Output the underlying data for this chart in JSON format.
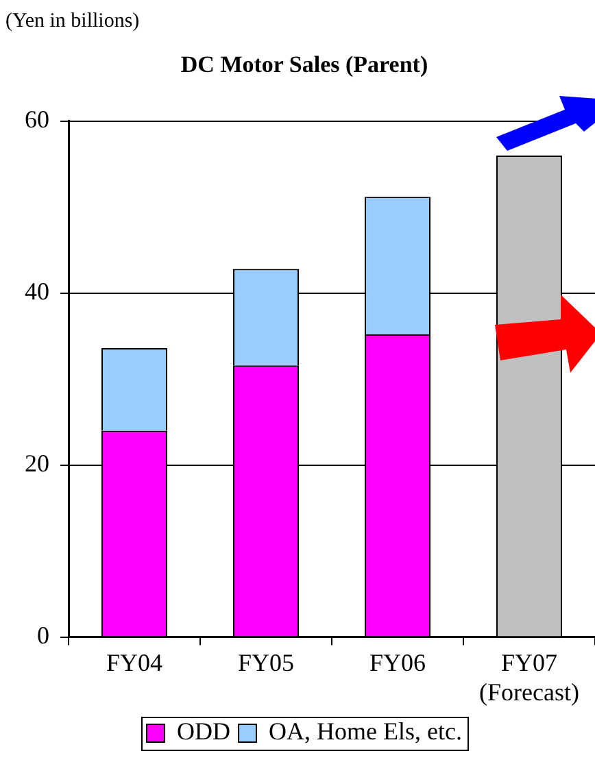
{
  "chart_data": {
    "type": "bar",
    "title": "DC Motor Sales (Parent)",
    "annotations": [
      "(Yen in billions)"
    ],
    "categories": [
      "FY04",
      "FY05",
      "FY06",
      "FY07\n(Forecast)"
    ],
    "stacked": true,
    "series": [
      {
        "name": "ODD",
        "color": "#ff00ff",
        "values": [
          24,
          31.6,
          35.2,
          null
        ]
      },
      {
        "name": "OA, Home Els, etc.",
        "color": "#99ccff",
        "values": [
          9.6,
          11.2,
          16,
          null
        ]
      },
      {
        "color": "#c0c0c0",
        "values": [
          null,
          null,
          null,
          56
        ]
      }
    ],
    "ylim": [
      0,
      60
    ],
    "yticks": [
      0,
      20,
      40,
      60
    ],
    "grid": "y",
    "legend": "bottom"
  }
}
